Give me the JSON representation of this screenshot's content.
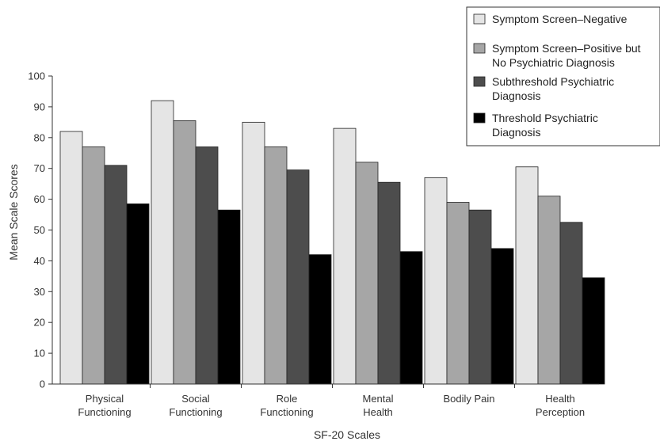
{
  "chart_data": {
    "type": "bar",
    "title": "",
    "xlabel": "SF-20 Scales",
    "ylabel": "Mean Scale Scores",
    "ylim": [
      0,
      100
    ],
    "yticks": [
      0,
      10,
      20,
      30,
      40,
      50,
      60,
      70,
      80,
      90,
      100
    ],
    "grid": false,
    "legend_position": "top-right",
    "categories": [
      [
        "Physical",
        "Functioning"
      ],
      [
        "Social",
        "Functioning"
      ],
      [
        "Role",
        "Functioning"
      ],
      [
        "Mental",
        "Health"
      ],
      [
        "Bodily Pain"
      ],
      [
        "Health",
        "Perception"
      ]
    ],
    "series": [
      {
        "name": [
          "Symptom Screen–Negative"
        ],
        "color": "#e5e5e5",
        "values": [
          82,
          92,
          85,
          83,
          67,
          70.5
        ]
      },
      {
        "name": [
          "Symptom Screen–Positive but",
          "No Psychiatric Diagnosis"
        ],
        "color": "#a6a6a6",
        "values": [
          77,
          85.5,
          77,
          72,
          59,
          61
        ]
      },
      {
        "name": [
          "Subthreshold Psychiatric",
          "Diagnosis"
        ],
        "color": "#4d4d4d",
        "values": [
          71,
          77,
          69.5,
          65.5,
          56.5,
          52.5
        ]
      },
      {
        "name": [
          "Threshold Psychiatric",
          "Diagnosis"
        ],
        "color": "#000000",
        "values": [
          58.5,
          56.5,
          42,
          43,
          44,
          34.5
        ]
      }
    ]
  }
}
